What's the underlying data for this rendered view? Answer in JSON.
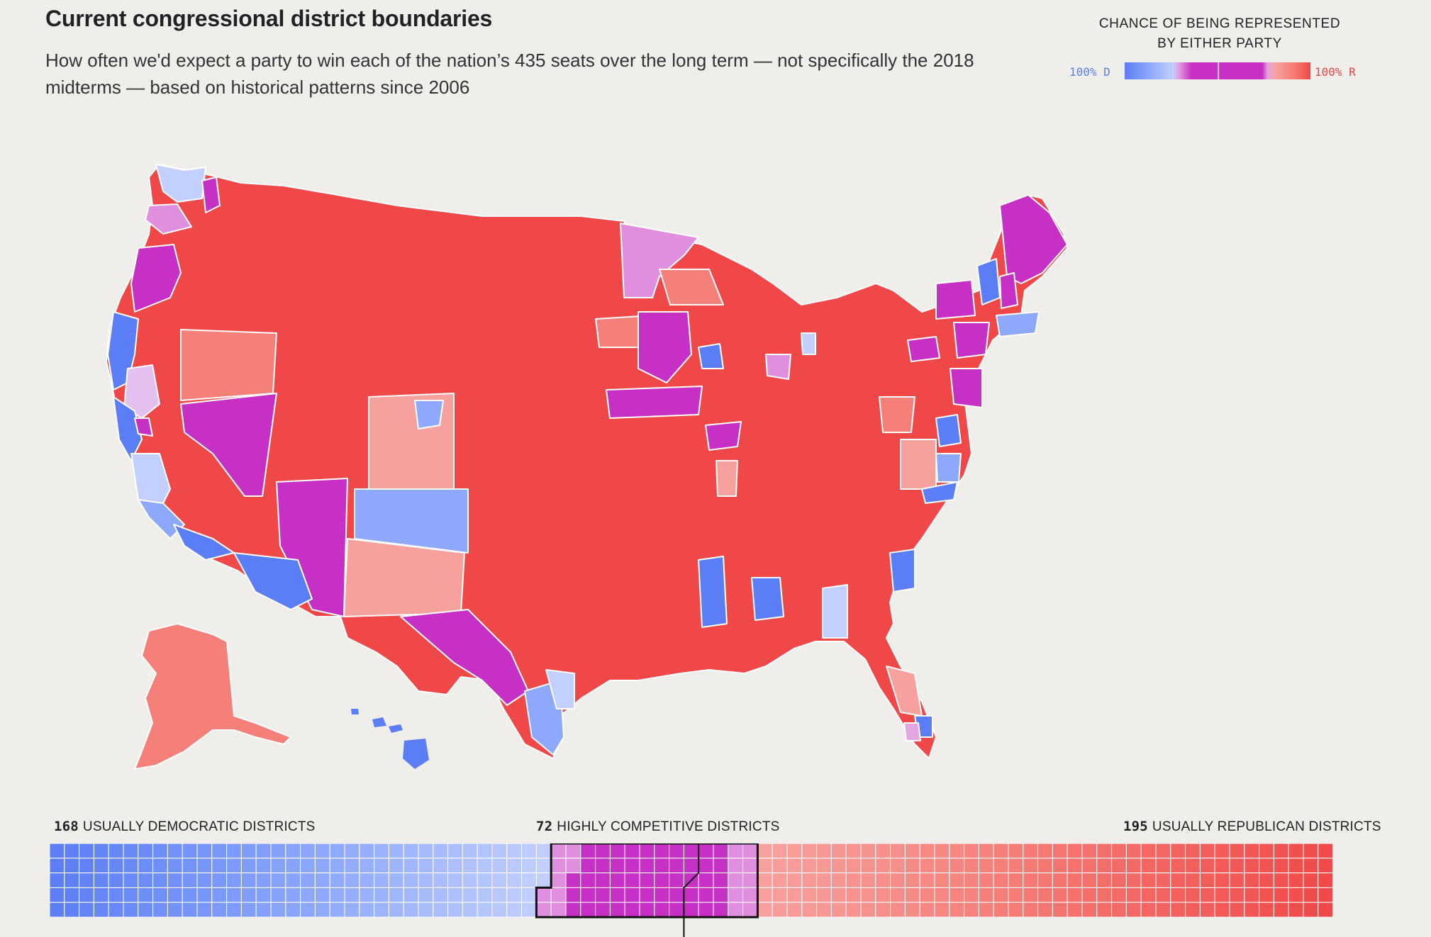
{
  "header": {
    "title": "Current congressional district boundaries",
    "subtitle": "How often we'd expect a party to win each of the nation’s 435 seats over the long term — not specifically the 2018 midterms — based on historical patterns since 2006"
  },
  "legend": {
    "title": "CHANCE OF BEING REPRESENTED BY EITHER PARTY",
    "left_label": "100% D",
    "right_label": "100% R"
  },
  "colors": {
    "background": "#efeeea",
    "dem_strong": "#5b7df5",
    "dem_lean": "#8ea9fb",
    "dem_light": "#c3cffc",
    "competitive": "#c730c4",
    "competitive_light": "#e08fde",
    "rep_light": "#f7a19e",
    "rep_lean": "#f5807a",
    "rep_strong": "#f04848"
  },
  "counts": {
    "democratic": {
      "value": "168",
      "label": "USUALLY DEMOCRATIC DISTRICTS"
    },
    "competitive": {
      "value": "72",
      "label": "HIGHLY COMPETITIVE DISTRICTS"
    },
    "republican": {
      "value": "195",
      "label": "USUALLY REPUBLICAN DISTRICTS"
    }
  },
  "district_totals": {
    "total": 435,
    "democratic": 168,
    "competitive": 72,
    "republican": 195
  }
}
